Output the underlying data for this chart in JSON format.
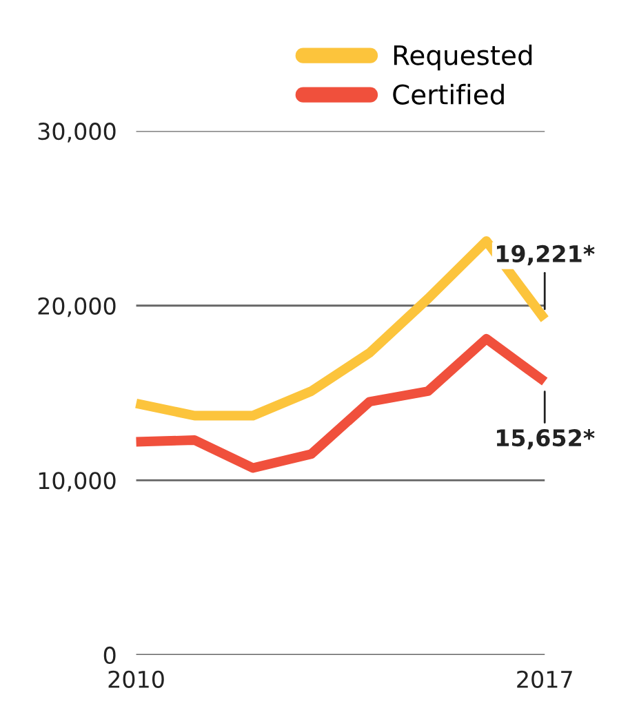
{
  "chart_data": {
    "type": "line",
    "x": [
      2010,
      2011,
      2012,
      2013,
      2014,
      2015,
      2016,
      2017
    ],
    "series": [
      {
        "name": "Requested",
        "color": "#fcc43c",
        "values": [
          14400,
          13700,
          13700,
          15100,
          17300,
          20400,
          23700,
          19221
        ]
      },
      {
        "name": "Certified",
        "color": "#f0503c",
        "values": [
          12200,
          12300,
          10700,
          11500,
          14500,
          15100,
          18100,
          15652
        ]
      }
    ],
    "xlim": [
      2010,
      2017
    ],
    "xticks": [
      2010,
      2017
    ],
    "ylim": [
      0,
      30000
    ],
    "yticks": [
      {
        "value": 0,
        "label": "0"
      },
      {
        "value": 10000,
        "label": "10,000"
      },
      {
        "value": 20000,
        "label": "20,000"
      },
      {
        "value": 30000,
        "label": "30,000"
      }
    ],
    "grid": "y",
    "legend": "top right",
    "marker": "none",
    "line_style": "solid",
    "annotations": [
      {
        "text": "19,221*",
        "x": 2017,
        "y": 19221
      },
      {
        "text": "15,652*",
        "x": 2017,
        "y": 15652
      }
    ]
  }
}
